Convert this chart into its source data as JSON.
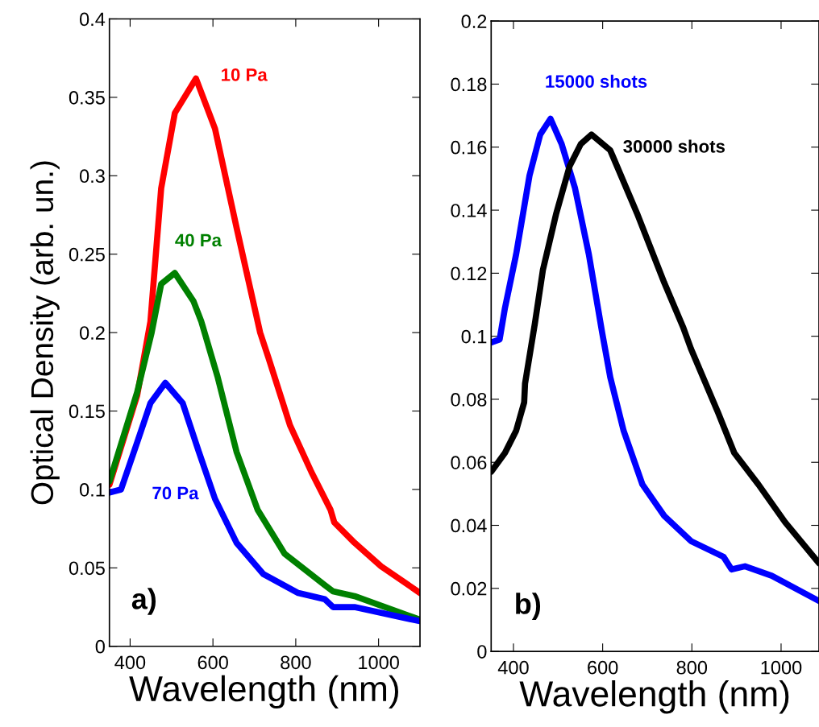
{
  "chart_data": [
    {
      "type": "line",
      "xlabel": "Wavelength (nm)",
      "ylabel": "Optical Density (arb. un.)",
      "xlim": [
        350,
        1100
      ],
      "ylim": [
        0,
        0.4
      ],
      "xticks": [
        400,
        600,
        800,
        1000
      ],
      "yticks": [
        0,
        0.05,
        0.1,
        0.15,
        0.2,
        0.25,
        0.3,
        0.35,
        0.4
      ],
      "grid": false,
      "legend": false,
      "marker": "none",
      "line_style": "solid",
      "annotations": [
        "a)"
      ],
      "series": [
        {
          "name": "10 Pa",
          "color": "#ff0000",
          "x": [
            350,
            417,
            449,
            475,
            508,
            559,
            605,
            657,
            714,
            734,
            786,
            838,
            884,
            893,
            942,
            1006,
            1100
          ],
          "values": [
            0.103,
            0.16,
            0.207,
            0.292,
            0.34,
            0.362,
            0.33,
            0.267,
            0.2,
            0.184,
            0.141,
            0.111,
            0.087,
            0.079,
            0.066,
            0.051,
            0.034
          ]
        },
        {
          "name": "40 Pa",
          "color": "#008000",
          "x": [
            350,
            417,
            452,
            475,
            508,
            553,
            572,
            611,
            657,
            708,
            773,
            870,
            890,
            942,
            1100
          ],
          "values": [
            0.105,
            0.162,
            0.2,
            0.231,
            0.238,
            0.22,
            0.207,
            0.172,
            0.124,
            0.087,
            0.059,
            0.039,
            0.035,
            0.032,
            0.017
          ]
        },
        {
          "name": "70 Pa",
          "color": "#0000ff",
          "x": [
            350,
            378,
            417,
            449,
            485,
            527,
            566,
            605,
            657,
            722,
            806,
            870,
            890,
            942,
            1100
          ],
          "values": [
            0.098,
            0.1,
            0.13,
            0.155,
            0.168,
            0.155,
            0.124,
            0.094,
            0.066,
            0.046,
            0.034,
            0.03,
            0.025,
            0.025,
            0.016
          ]
        }
      ]
    },
    {
      "type": "line",
      "xlabel": "Wavelength (nm)",
      "xlim": [
        350,
        1085
      ],
      "ylim": [
        0,
        0.2
      ],
      "xticks": [
        400,
        600,
        800,
        1000
      ],
      "yticks": [
        0,
        0.02,
        0.04,
        0.06,
        0.08,
        0.1,
        0.12,
        0.14,
        0.16,
        0.18,
        0.2
      ],
      "grid": false,
      "legend": false,
      "marker": "none",
      "line_style": "solid",
      "annotations": [
        "b)"
      ],
      "series": [
        {
          "name": "15000 shots",
          "color": "#0000ff",
          "x": [
            350,
            369,
            381,
            406,
            436,
            460,
            483,
            508,
            538,
            569,
            599,
            617,
            647,
            689,
            738,
            798,
            871,
            889,
            919,
            979,
            1085
          ],
          "values": [
            0.098,
            0.099,
            0.109,
            0.126,
            0.151,
            0.164,
            0.169,
            0.161,
            0.147,
            0.126,
            0.101,
            0.087,
            0.07,
            0.053,
            0.043,
            0.035,
            0.03,
            0.026,
            0.027,
            0.024,
            0.016
          ]
        },
        {
          "name": "30000 shots",
          "color": "#000000",
          "x": [
            350,
            381,
            406,
            424,
            426,
            448,
            466,
            496,
            526,
            551,
            575,
            617,
            677,
            738,
            780,
            798,
            858,
            895,
            949,
            1009,
            1085
          ],
          "values": [
            0.057,
            0.063,
            0.07,
            0.079,
            0.085,
            0.104,
            0.121,
            0.139,
            0.154,
            0.161,
            0.164,
            0.159,
            0.139,
            0.117,
            0.103,
            0.096,
            0.076,
            0.063,
            0.053,
            0.041,
            0.028
          ]
        }
      ]
    }
  ]
}
